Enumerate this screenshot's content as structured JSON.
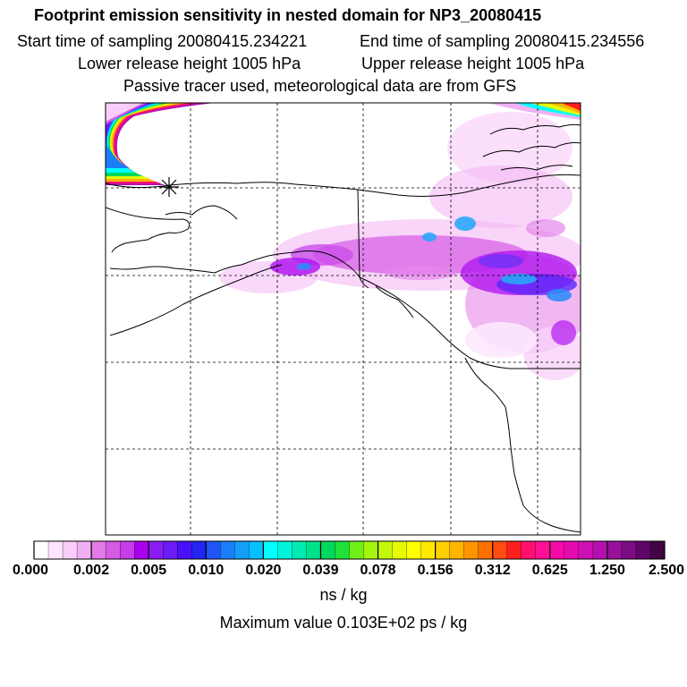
{
  "header": {
    "title": "Footprint emission sensitivity in nested domain for NP3_20080415",
    "start_time": "Start time of sampling 20080415.234221",
    "end_time": "End time of sampling 20080415.234556",
    "lower_height": "Lower release height 1005 hPa",
    "upper_height": "Upper release height 1005 hPa",
    "tracer_info": "Passive tracer used, meteorological data are from GFS"
  },
  "colorbar": {
    "ticks": [
      "0.000",
      "0.002",
      "0.005",
      "0.010",
      "0.020",
      "0.039",
      "0.078",
      "0.156",
      "0.312",
      "0.625",
      "1.250",
      "2.500"
    ],
    "units": "ns / kg",
    "max_value": "Maximum value  0.103E+02 ps / kg",
    "colors": [
      "#ffffff",
      "#fde6fd",
      "#f9cdf9",
      "#f2b0f4",
      "#e27ae9",
      "#d65ae6",
      "#c63ce8",
      "#aa00ee",
      "#8a1cf2",
      "#6a1cf6",
      "#4a10fa",
      "#2424f4",
      "#1f55f6",
      "#1a7ef8",
      "#149efa",
      "#05c0fc",
      "#00ffff",
      "#00f5dc",
      "#00eab2",
      "#00e28a",
      "#00d85c",
      "#1ee23a",
      "#70f019",
      "#a4f40c",
      "#c4f80a",
      "#e6fa05",
      "#ffff00",
      "#ffe800",
      "#ffd000",
      "#ffb400",
      "#ff9400",
      "#ff7000",
      "#ff4c10",
      "#ff1e1e",
      "#ff1070",
      "#ff0e96",
      "#f80aa8",
      "#e40ab0",
      "#cc10b4",
      "#b410b0",
      "#98109a",
      "#7a0c84",
      "#5e0666",
      "#420544"
    ]
  },
  "map": {
    "receptor_marker": "star-marker"
  }
}
